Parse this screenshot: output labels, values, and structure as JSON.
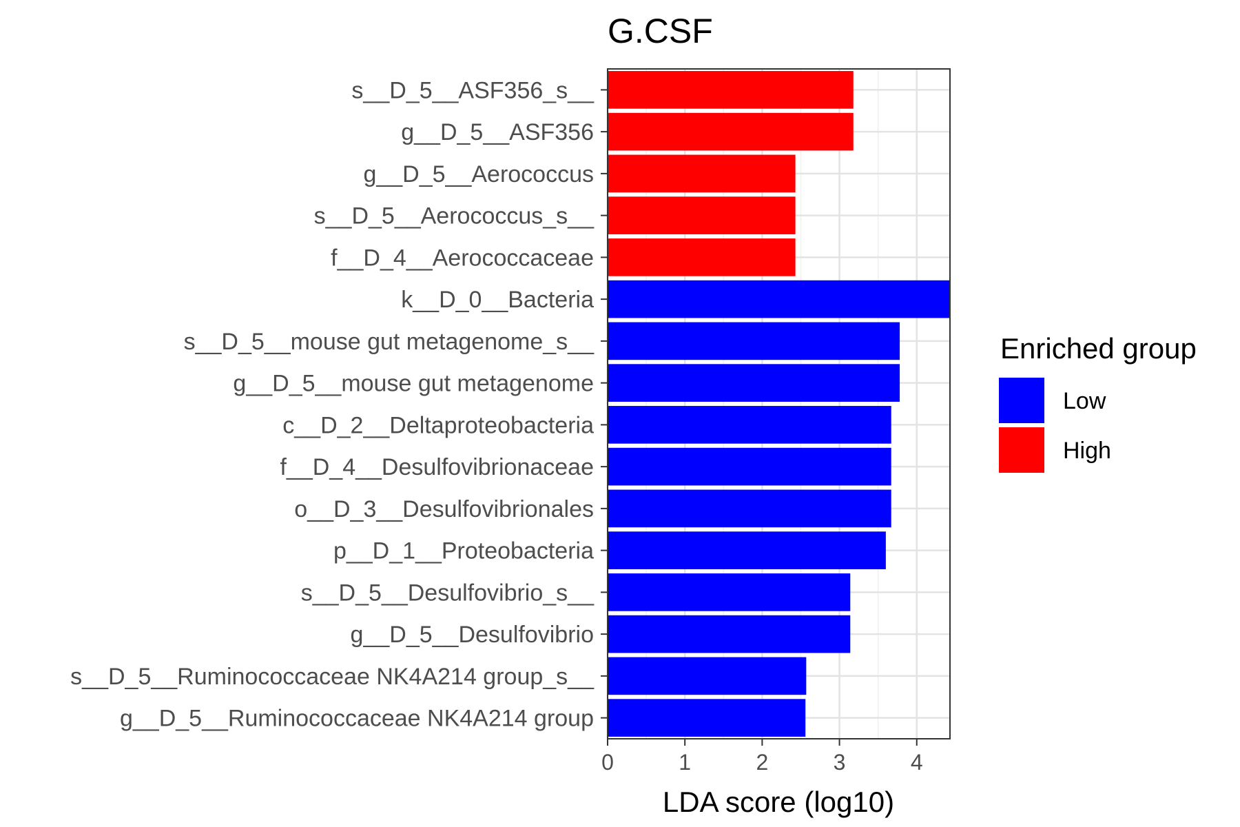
{
  "chart_data": {
    "type": "bar",
    "orientation": "horizontal",
    "title": "G.CSF",
    "xlabel": "LDA score (log10)",
    "ylabel": "",
    "xlim": [
      0,
      4.43
    ],
    "xticks": [
      0,
      1,
      2,
      3,
      4
    ],
    "grid": true,
    "legend_position": "right",
    "legend": {
      "title": "Enriched group",
      "entries": [
        {
          "label": "Low",
          "color": "#0000ff"
        },
        {
          "label": "High",
          "color": "#ff0000"
        }
      ]
    },
    "categories": [
      "s__D_5__ASF356_s__",
      "g__D_5__ASF356",
      "g__D_5__Aerococcus",
      "s__D_5__Aerococcus_s__",
      "f__D_4__Aerococcaceae",
      "k__D_0__Bacteria",
      "s__D_5__mouse gut metagenome_s__",
      "g__D_5__mouse gut metagenome",
      "c__D_2__Deltaproteobacteria",
      "f__D_4__Desulfovibrionaceae",
      "o__D_3__Desulfovibrionales",
      "p__D_1__Proteobacteria",
      "s__D_5__Desulfovibrio_s__",
      "g__D_5__Desulfovibrio",
      "s__D_5__Ruminococcaceae NK4A214 group_s__",
      "g__D_5__Ruminococcaceae NK4A214 group"
    ],
    "values": [
      3.18,
      3.18,
      2.43,
      2.43,
      2.43,
      4.43,
      3.78,
      3.78,
      3.67,
      3.67,
      3.67,
      3.6,
      3.14,
      3.14,
      2.57,
      2.56
    ],
    "groups": [
      "High",
      "High",
      "High",
      "High",
      "High",
      "Low",
      "Low",
      "Low",
      "Low",
      "Low",
      "Low",
      "Low",
      "Low",
      "Low",
      "Low",
      "Low"
    ],
    "colors": {
      "High": "#ff0000",
      "Low": "#0000ff"
    }
  }
}
